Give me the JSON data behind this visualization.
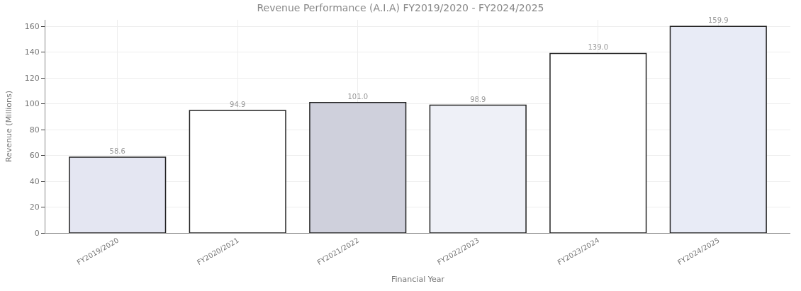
{
  "chart_data": {
    "type": "bar",
    "title": "Revenue Performance (A.I.A) FY2019/2020 - FY2024/2025",
    "xlabel": "Financial Year",
    "ylabel": "Revenue (Millions)",
    "categories": [
      "FY2019/2020",
      "FY2020/2021",
      "FY2021/2022",
      "FY2022/2023",
      "FY2023/2024",
      "FY2024/2025"
    ],
    "values": [
      58.6,
      94.9,
      101.0,
      98.9,
      139.0,
      159.9
    ],
    "value_labels": [
      "58.6",
      "94.9",
      "101.0",
      "98.9",
      "139.0",
      "159.9"
    ],
    "colors": [
      "#e4e6f2",
      "#ffffff",
      "#cfd0dc",
      "#eef0f7",
      "#ffffff",
      "#e8ebf6"
    ],
    "ylim": [
      0,
      165
    ],
    "yticks": [
      0,
      20,
      40,
      60,
      80,
      100,
      120,
      140,
      160
    ],
    "grid": true
  }
}
